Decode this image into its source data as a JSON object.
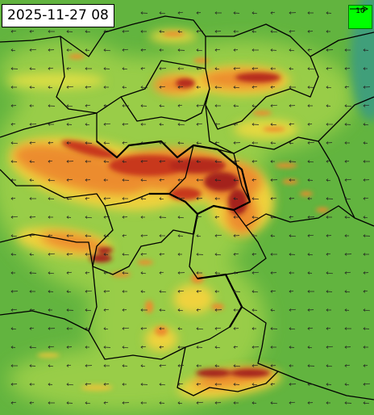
{
  "header": {
    "timestamp": "2025-11-27 08"
  },
  "legend": {
    "reference_value": "10",
    "arrow_icon": "arrow-right-icon"
  },
  "colors": {
    "background_green": "#62b43f",
    "light_green": "#9fd04a",
    "yellow_green": "#c9de46",
    "yellow": "#f0d23c",
    "orange": "#ec8c2e",
    "dark_orange": "#d9541e",
    "dark_red": "#a4221a",
    "legend_green": "#00ff00",
    "border": "#000000"
  },
  "wind_field": {
    "direction": "west",
    "icon": "wind-arrow-icon"
  }
}
